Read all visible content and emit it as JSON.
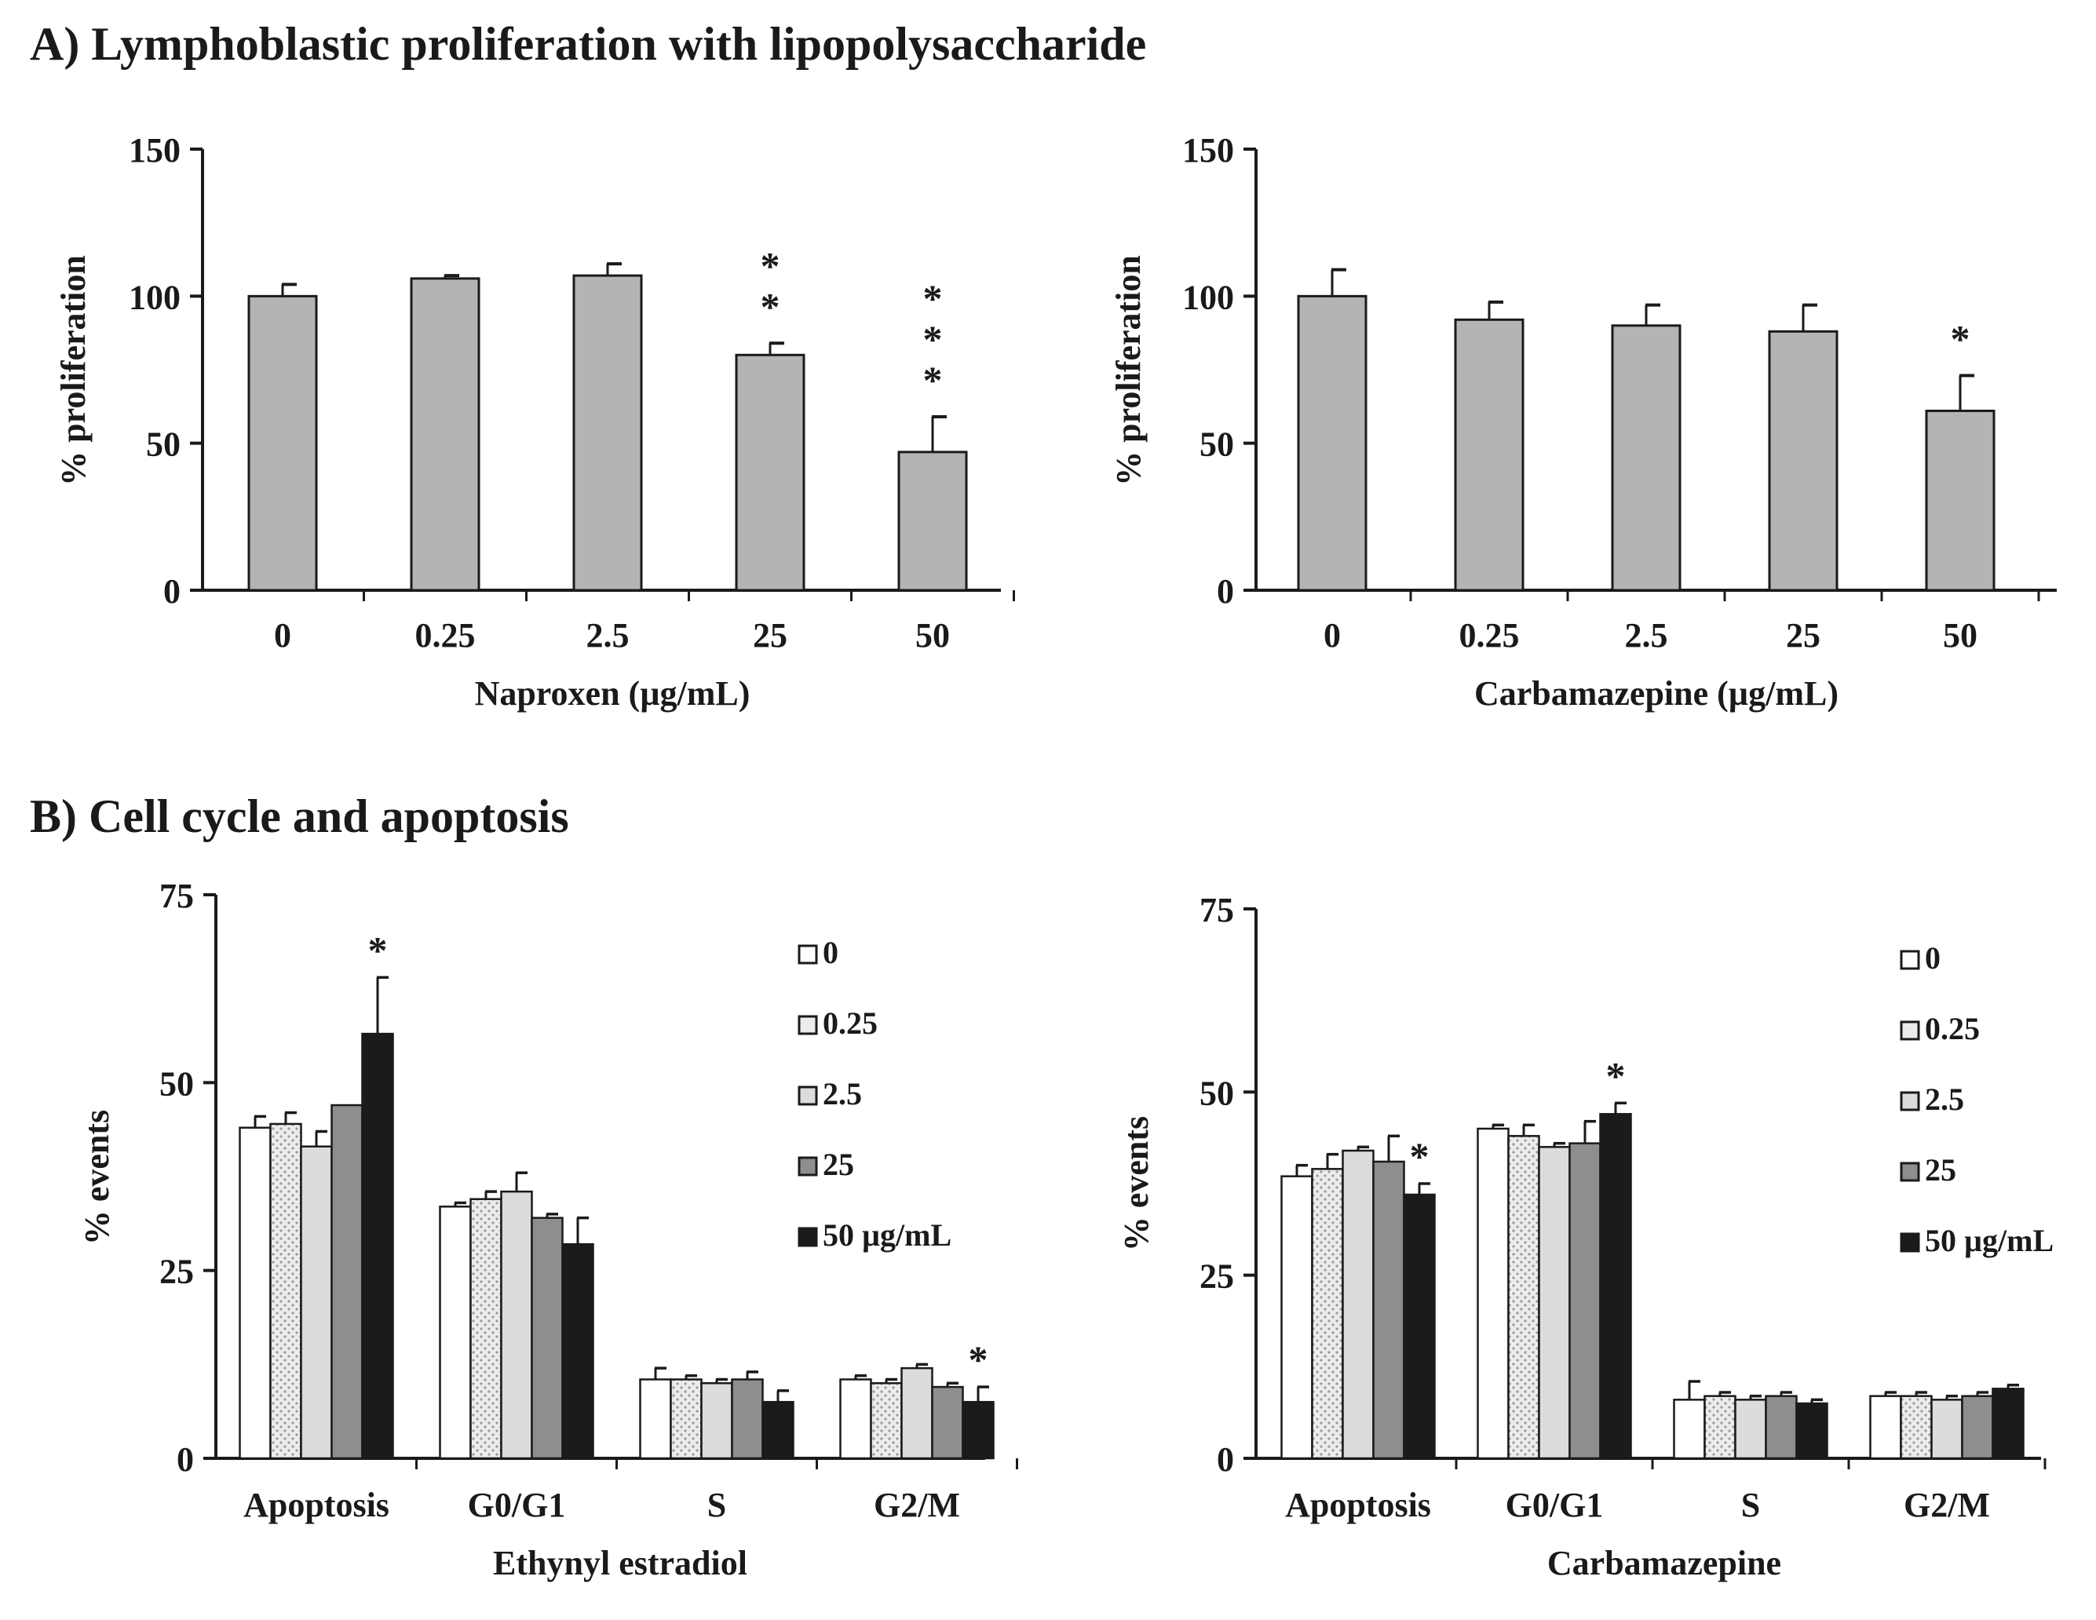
{
  "sections": {
    "a_title": "A) Lymphoblastic proliferation with lipopolysaccharide",
    "b_title": "B) Cell cycle and apoptosis"
  },
  "colors": {
    "bar_gray": "#b4b4b6",
    "c0": "#ffffff",
    "c025": "#ececec",
    "c25": "#dcdcdc",
    "c25b": "#8e8e8e",
    "c50": "#1b1b1b",
    "axis": "#1a1a1a"
  },
  "chart_data": [
    {
      "id": "naproxen",
      "type": "bar",
      "categories": [
        "0",
        "0.25",
        "2.5",
        "25",
        "50"
      ],
      "values": [
        100,
        106,
        107,
        80,
        47
      ],
      "errors": [
        4,
        1,
        4,
        4,
        12
      ],
      "annotations": [
        "",
        "",
        "",
        "*\n*",
        "*\n*\n*"
      ],
      "xlabel": "Naproxen (µg/mL)",
      "ylabel": "% proliferation",
      "ylim": [
        0,
        150
      ],
      "yticks": [
        "0",
        "50",
        "100",
        "150"
      ]
    },
    {
      "id": "carbamazepine_prolif",
      "type": "bar",
      "categories": [
        "0",
        "0.25",
        "2.5",
        "25",
        "50"
      ],
      "values": [
        100,
        92,
        90,
        88,
        61
      ],
      "errors": [
        9,
        6,
        7,
        9,
        12
      ],
      "annotations": [
        "",
        "",
        "",
        "",
        "*"
      ],
      "xlabel": "Carbamazepine (µg/mL)",
      "ylabel": "% proliferation",
      "ylim": [
        0,
        150
      ],
      "yticks": [
        "0",
        "50",
        "100",
        "150"
      ]
    },
    {
      "id": "ee_cellcycle",
      "type": "bar",
      "categories": [
        "Apoptosis",
        "G0/G1",
        "S",
        "G2/M"
      ],
      "series": [
        {
          "name": "0",
          "values": [
            44,
            33.5,
            10.5,
            10.5
          ],
          "errors": [
            1.5,
            0.5,
            1.5,
            0.5
          ]
        },
        {
          "name": "0.25",
          "values": [
            44.5,
            34.5,
            10.5,
            10
          ],
          "errors": [
            1.5,
            1,
            0.5,
            0.5
          ]
        },
        {
          "name": "2.5",
          "values": [
            41.5,
            35.5,
            10,
            12
          ],
          "errors": [
            2,
            2.5,
            0.5,
            0.5
          ]
        },
        {
          "name": "25",
          "values": [
            47,
            32,
            10.5,
            9.5
          ],
          "errors": [
            0,
            0.5,
            1,
            0.5
          ]
        },
        {
          "name": "50 µg/mL",
          "values": [
            56.5,
            28.5,
            7.5,
            7.5
          ],
          "errors": [
            7.5,
            3.5,
            1.5,
            2
          ]
        }
      ],
      "annotations": [
        {
          "category": "Apoptosis",
          "series": "50 µg/mL",
          "text": "*"
        },
        {
          "category": "G2/M",
          "series": "50 µg/mL",
          "text": "*"
        }
      ],
      "xlabel": "Ethynyl estradiol",
      "ylabel": "% events",
      "ylim": [
        0,
        75
      ],
      "yticks": [
        "0",
        "25",
        "50",
        "75"
      ],
      "legend": "top-right"
    },
    {
      "id": "cbz_cellcycle",
      "type": "bar",
      "categories": [
        "Apoptosis",
        "G0/G1",
        "S",
        "G2/M"
      ],
      "series": [
        {
          "name": "0",
          "values": [
            38.5,
            45,
            8,
            8.5
          ],
          "errors": [
            1.5,
            0.5,
            2.5,
            0.5
          ]
        },
        {
          "name": "0.25",
          "values": [
            39.5,
            44,
            8.5,
            8.5
          ],
          "errors": [
            2,
            1.5,
            0.5,
            0.5
          ]
        },
        {
          "name": "2.5",
          "values": [
            42,
            42.5,
            8,
            8
          ],
          "errors": [
            0.5,
            0.5,
            0.5,
            0.5
          ]
        },
        {
          "name": "25",
          "values": [
            40.5,
            43,
            8.5,
            8.5
          ],
          "errors": [
            3.5,
            3,
            0.5,
            0.5
          ]
        },
        {
          "name": "50 µg/mL",
          "values": [
            36,
            47,
            7.5,
            9.5
          ],
          "errors": [
            1.5,
            1.5,
            0.5,
            0.5
          ]
        }
      ],
      "annotations": [
        {
          "category": "Apoptosis",
          "series": "50 µg/mL",
          "text": "*"
        },
        {
          "category": "G0/G1",
          "series": "50 µg/mL",
          "text": "*"
        }
      ],
      "xlabel": "Carbamazepine",
      "ylabel": "% events",
      "ylim": [
        0,
        75
      ],
      "yticks": [
        "0",
        "25",
        "50",
        "75"
      ],
      "legend": "top-right"
    }
  ]
}
